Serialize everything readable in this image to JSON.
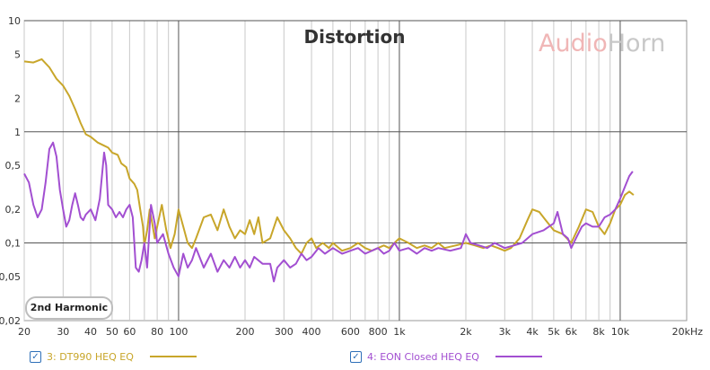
{
  "chart_data": {
    "type": "line",
    "title": "Distortion",
    "watermark": [
      "Audio",
      "Horn"
    ],
    "annotation": "2nd Harmonic",
    "x_scale": "log",
    "y_scale": "log",
    "xlim": [
      20,
      20000
    ],
    "ylim": [
      0.02,
      10
    ],
    "x_ticks": [
      {
        "v": 20,
        "l": "20"
      },
      {
        "v": 30,
        "l": "30"
      },
      {
        "v": 40,
        "l": "40"
      },
      {
        "v": 50,
        "l": "50"
      },
      {
        "v": 60,
        "l": "60"
      },
      {
        "v": 80,
        "l": "80"
      },
      {
        "v": 100,
        "l": "100"
      },
      {
        "v": 200,
        "l": "200"
      },
      {
        "v": 300,
        "l": "300"
      },
      {
        "v": 400,
        "l": "400"
      },
      {
        "v": 600,
        "l": "600"
      },
      {
        "v": 800,
        "l": "800"
      },
      {
        "v": 1000,
        "l": "1k"
      },
      {
        "v": 2000,
        "l": "2k"
      },
      {
        "v": 3000,
        "l": "3k"
      },
      {
        "v": 4000,
        "l": "4k"
      },
      {
        "v": 5000,
        "l": "5k"
      },
      {
        "v": 6000,
        "l": "6k"
      },
      {
        "v": 8000,
        "l": "8k"
      },
      {
        "v": 10000,
        "l": "10k"
      },
      {
        "v": 20000,
        "l": "20kHz"
      }
    ],
    "y_ticks": [
      {
        "v": 10,
        "l": "10"
      },
      {
        "v": 5,
        "l": "5"
      },
      {
        "v": 2,
        "l": "2"
      },
      {
        "v": 1,
        "l": "1"
      },
      {
        "v": 0.5,
        "l": "0,5"
      },
      {
        "v": 0.2,
        "l": "0,2"
      },
      {
        "v": 0.1,
        "l": "0,1"
      },
      {
        "v": 0.05,
        "l": "0,05"
      },
      {
        "v": 0.02,
        "l": "0,02"
      }
    ],
    "series": [
      {
        "name": "3: DT990 HEQ EQ",
        "color": "#c8a62a",
        "points": [
          [
            20,
            4.3
          ],
          [
            22,
            4.2
          ],
          [
            24,
            4.5
          ],
          [
            26,
            3.8
          ],
          [
            28,
            3.0
          ],
          [
            30,
            2.6
          ],
          [
            32,
            2.1
          ],
          [
            34,
            1.6
          ],
          [
            36,
            1.2
          ],
          [
            38,
            0.95
          ],
          [
            40,
            0.9
          ],
          [
            43,
            0.8
          ],
          [
            46,
            0.75
          ],
          [
            48,
            0.72
          ],
          [
            50,
            0.65
          ],
          [
            53,
            0.62
          ],
          [
            55,
            0.52
          ],
          [
            58,
            0.48
          ],
          [
            60,
            0.38
          ],
          [
            63,
            0.34
          ],
          [
            65,
            0.3
          ],
          [
            67,
            0.2
          ],
          [
            69,
            0.14
          ],
          [
            70,
            0.095
          ],
          [
            72,
            0.13
          ],
          [
            74,
            0.2
          ],
          [
            76,
            0.15
          ],
          [
            78,
            0.11
          ],
          [
            80,
            0.14
          ],
          [
            84,
            0.22
          ],
          [
            88,
            0.13
          ],
          [
            92,
            0.09
          ],
          [
            96,
            0.12
          ],
          [
            100,
            0.2
          ],
          [
            105,
            0.14
          ],
          [
            110,
            0.1
          ],
          [
            115,
            0.09
          ],
          [
            120,
            0.11
          ],
          [
            130,
            0.17
          ],
          [
            140,
            0.18
          ],
          [
            150,
            0.13
          ],
          [
            160,
            0.2
          ],
          [
            170,
            0.14
          ],
          [
            180,
            0.11
          ],
          [
            190,
            0.13
          ],
          [
            200,
            0.12
          ],
          [
            210,
            0.16
          ],
          [
            220,
            0.12
          ],
          [
            230,
            0.17
          ],
          [
            240,
            0.1
          ],
          [
            260,
            0.11
          ],
          [
            280,
            0.17
          ],
          [
            300,
            0.13
          ],
          [
            320,
            0.11
          ],
          [
            340,
            0.09
          ],
          [
            360,
            0.08
          ],
          [
            380,
            0.1
          ],
          [
            400,
            0.11
          ],
          [
            420,
            0.09
          ],
          [
            450,
            0.1
          ],
          [
            480,
            0.09
          ],
          [
            500,
            0.1
          ],
          [
            550,
            0.085
          ],
          [
            600,
            0.09
          ],
          [
            650,
            0.1
          ],
          [
            700,
            0.09
          ],
          [
            750,
            0.085
          ],
          [
            800,
            0.09
          ],
          [
            850,
            0.095
          ],
          [
            900,
            0.09
          ],
          [
            950,
            0.1
          ],
          [
            1000,
            0.11
          ],
          [
            1100,
            0.1
          ],
          [
            1200,
            0.09
          ],
          [
            1300,
            0.095
          ],
          [
            1400,
            0.09
          ],
          [
            1500,
            0.1
          ],
          [
            1600,
            0.09
          ],
          [
            1800,
            0.095
          ],
          [
            2000,
            0.1
          ],
          [
            2200,
            0.095
          ],
          [
            2400,
            0.09
          ],
          [
            2600,
            0.095
          ],
          [
            2800,
            0.09
          ],
          [
            3000,
            0.085
          ],
          [
            3200,
            0.09
          ],
          [
            3500,
            0.11
          ],
          [
            3800,
            0.16
          ],
          [
            4000,
            0.2
          ],
          [
            4300,
            0.19
          ],
          [
            4600,
            0.16
          ],
          [
            5000,
            0.13
          ],
          [
            5500,
            0.12
          ],
          [
            6000,
            0.1
          ],
          [
            6500,
            0.14
          ],
          [
            7000,
            0.2
          ],
          [
            7500,
            0.19
          ],
          [
            8000,
            0.14
          ],
          [
            8500,
            0.12
          ],
          [
            9000,
            0.15
          ],
          [
            9500,
            0.2
          ],
          [
            10000,
            0.22
          ],
          [
            10500,
            0.27
          ],
          [
            11000,
            0.29
          ],
          [
            11500,
            0.27
          ]
        ]
      },
      {
        "name": "4: EON Closed HEQ EQ",
        "color": "#a24fd1",
        "points": [
          [
            20,
            0.42
          ],
          [
            21,
            0.35
          ],
          [
            22,
            0.22
          ],
          [
            23,
            0.17
          ],
          [
            24,
            0.2
          ],
          [
            25,
            0.35
          ],
          [
            26,
            0.7
          ],
          [
            27,
            0.8
          ],
          [
            28,
            0.6
          ],
          [
            29,
            0.3
          ],
          [
            30,
            0.2
          ],
          [
            31,
            0.14
          ],
          [
            32,
            0.16
          ],
          [
            33,
            0.22
          ],
          [
            34,
            0.28
          ],
          [
            35,
            0.22
          ],
          [
            36,
            0.17
          ],
          [
            37,
            0.16
          ],
          [
            38,
            0.18
          ],
          [
            40,
            0.2
          ],
          [
            42,
            0.16
          ],
          [
            44,
            0.25
          ],
          [
            46,
            0.65
          ],
          [
            47,
            0.5
          ],
          [
            48,
            0.22
          ],
          [
            50,
            0.2
          ],
          [
            52,
            0.17
          ],
          [
            54,
            0.19
          ],
          [
            56,
            0.17
          ],
          [
            58,
            0.2
          ],
          [
            60,
            0.22
          ],
          [
            62,
            0.17
          ],
          [
            64,
            0.06
          ],
          [
            66,
            0.055
          ],
          [
            68,
            0.07
          ],
          [
            70,
            0.1
          ],
          [
            72,
            0.06
          ],
          [
            75,
            0.22
          ],
          [
            78,
            0.15
          ],
          [
            80,
            0.1
          ],
          [
            85,
            0.12
          ],
          [
            90,
            0.08
          ],
          [
            95,
            0.06
          ],
          [
            100,
            0.05
          ],
          [
            105,
            0.08
          ],
          [
            110,
            0.06
          ],
          [
            115,
            0.07
          ],
          [
            120,
            0.09
          ],
          [
            130,
            0.06
          ],
          [
            140,
            0.08
          ],
          [
            150,
            0.055
          ],
          [
            160,
            0.07
          ],
          [
            170,
            0.06
          ],
          [
            180,
            0.075
          ],
          [
            190,
            0.06
          ],
          [
            200,
            0.07
          ],
          [
            210,
            0.06
          ],
          [
            220,
            0.075
          ],
          [
            240,
            0.065
          ],
          [
            260,
            0.065
          ],
          [
            270,
            0.045
          ],
          [
            280,
            0.06
          ],
          [
            300,
            0.07
          ],
          [
            320,
            0.06
          ],
          [
            340,
            0.065
          ],
          [
            360,
            0.08
          ],
          [
            380,
            0.07
          ],
          [
            400,
            0.075
          ],
          [
            430,
            0.09
          ],
          [
            460,
            0.08
          ],
          [
            500,
            0.09
          ],
          [
            550,
            0.08
          ],
          [
            600,
            0.085
          ],
          [
            650,
            0.09
          ],
          [
            700,
            0.08
          ],
          [
            750,
            0.085
          ],
          [
            800,
            0.09
          ],
          [
            850,
            0.08
          ],
          [
            900,
            0.085
          ],
          [
            950,
            0.1
          ],
          [
            1000,
            0.085
          ],
          [
            1100,
            0.09
          ],
          [
            1200,
            0.08
          ],
          [
            1300,
            0.09
          ],
          [
            1400,
            0.085
          ],
          [
            1500,
            0.09
          ],
          [
            1700,
            0.085
          ],
          [
            1900,
            0.09
          ],
          [
            2000,
            0.12
          ],
          [
            2100,
            0.1
          ],
          [
            2300,
            0.095
          ],
          [
            2500,
            0.09
          ],
          [
            2700,
            0.1
          ],
          [
            3000,
            0.09
          ],
          [
            3300,
            0.095
          ],
          [
            3600,
            0.1
          ],
          [
            4000,
            0.12
          ],
          [
            4500,
            0.13
          ],
          [
            5000,
            0.15
          ],
          [
            5200,
            0.19
          ],
          [
            5500,
            0.12
          ],
          [
            5800,
            0.11
          ],
          [
            6000,
            0.09
          ],
          [
            6300,
            0.11
          ],
          [
            6700,
            0.14
          ],
          [
            7000,
            0.15
          ],
          [
            7500,
            0.14
          ],
          [
            8000,
            0.14
          ],
          [
            8500,
            0.17
          ],
          [
            9000,
            0.18
          ],
          [
            9500,
            0.2
          ],
          [
            10000,
            0.25
          ],
          [
            10500,
            0.32
          ],
          [
            11000,
            0.4
          ],
          [
            11400,
            0.44
          ]
        ]
      }
    ]
  },
  "legend": [
    {
      "label": "3: DT990 HEQ EQ",
      "checked": "✓",
      "color": "#c8a62a"
    },
    {
      "label": "4: EON Closed HEQ EQ",
      "checked": "✓",
      "color": "#a24fd1"
    }
  ]
}
